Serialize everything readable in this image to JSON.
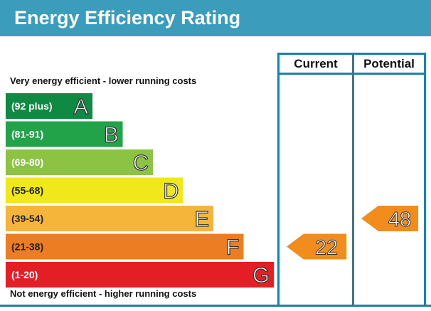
{
  "header": {
    "title": "Energy Efficiency Rating"
  },
  "captions": {
    "top": "Very energy efficient - lower running costs",
    "bottom": "Not energy efficient - higher running costs"
  },
  "columns": {
    "current": "Current",
    "potential": "Potential"
  },
  "colors": {
    "header": "#3b9dbb",
    "rule": "#1f7fa8",
    "arrow": "#f28c1c"
  },
  "chart_data": {
    "type": "bar",
    "title": "Energy Efficiency Rating",
    "bands": [
      {
        "range": "(92 plus)",
        "letter": "A",
        "color": "#0e8a43"
      },
      {
        "range": "(81-91)",
        "letter": "B",
        "color": "#22a34a"
      },
      {
        "range": "(69-80)",
        "letter": "C",
        "color": "#8cc342"
      },
      {
        "range": "(55-68)",
        "letter": "D",
        "color": "#f0e81a"
      },
      {
        "range": "(39-54)",
        "letter": "E",
        "color": "#f5b53b"
      },
      {
        "range": "(21-38)",
        "letter": "F",
        "color": "#ec7d23"
      },
      {
        "range": "(1-20)",
        "letter": "G",
        "color": "#e31e24"
      }
    ],
    "current": {
      "value": "22",
      "band": "F"
    },
    "potential": {
      "value": "48",
      "band": "E"
    }
  }
}
